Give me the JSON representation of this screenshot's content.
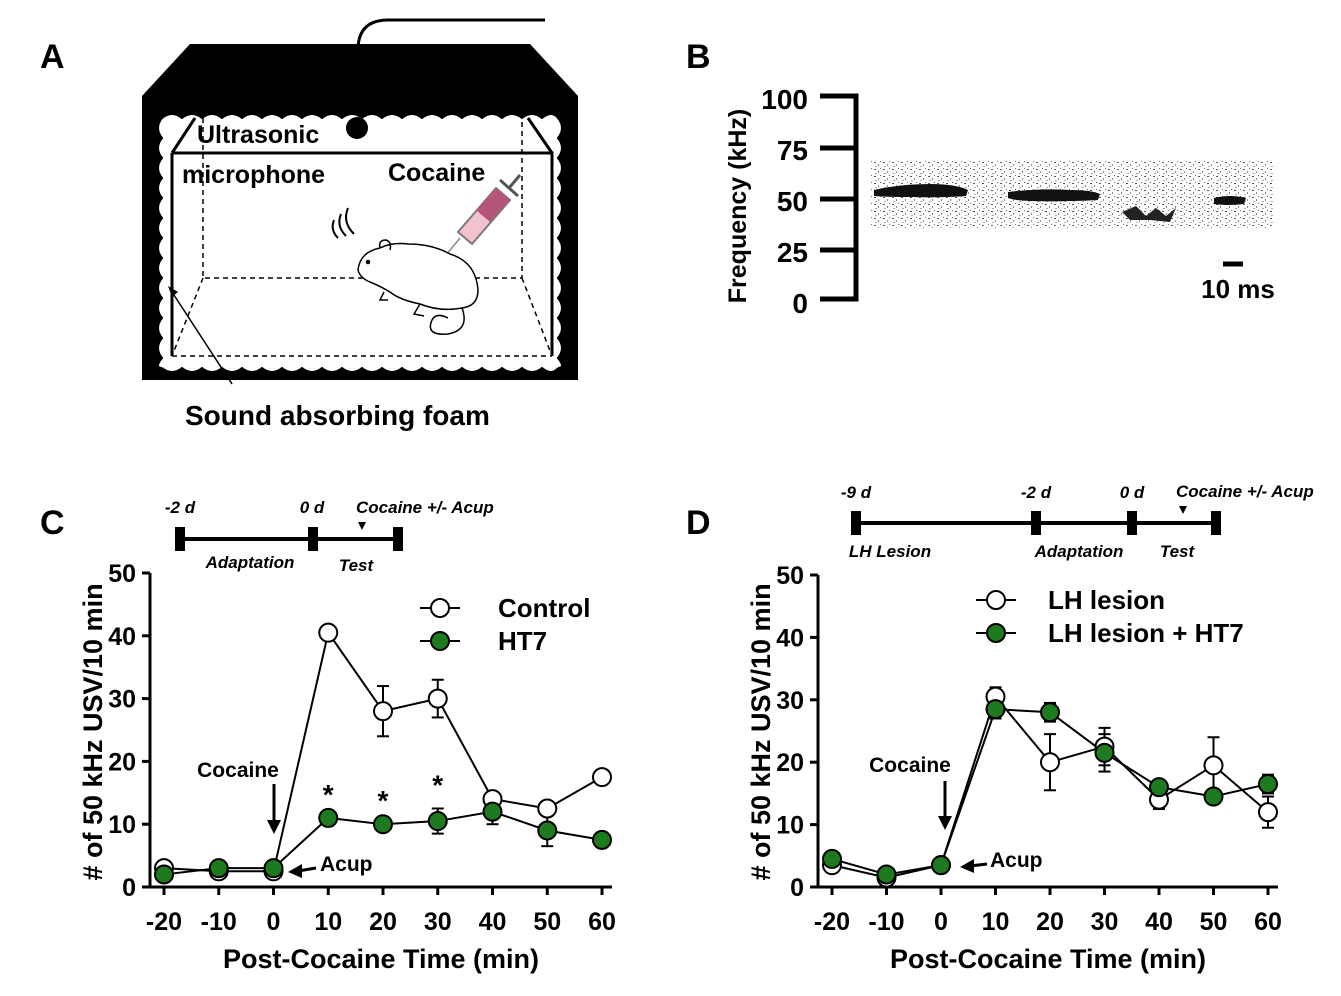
{
  "panels": {
    "a": {
      "letter": "A",
      "label_mic1": "Ultrasonic",
      "label_mic2": "microphone",
      "label_cocaine": "Cocaine",
      "label_foam": "Sound absorbing foam"
    },
    "b": {
      "letter": "B",
      "ylabel": "Frequency (kHz)",
      "yticks": [
        "100",
        "75",
        "50",
        "25",
        "0"
      ],
      "scale_label": "10 ms"
    },
    "c": {
      "letter": "C",
      "timeline": {
        "d1": "-2 d",
        "d2": "0 d",
        "event": "Cocaine +/- Acup",
        "seg1": "Adaptation",
        "seg2": "Test"
      },
      "ann_cocaine": "Cocaine",
      "ann_acup": "Acup",
      "star": "*"
    },
    "d": {
      "letter": "D",
      "timeline": {
        "d0": "-9 d",
        "d1": "-2 d",
        "d2": "0 d",
        "event": "Cocaine +/-  Acup",
        "seg0": "LH Lesion",
        "seg1": "Adaptation",
        "seg2": "Test"
      },
      "ann_cocaine": "Cocaine",
      "ann_acup": "Acup"
    }
  },
  "colors": {
    "green": "#1e7a1e",
    "black": "#000000",
    "white": "#ffffff"
  },
  "chart_data": [
    {
      "id": "C",
      "type": "line",
      "xlabel": "Post-Cocaine Time (min)",
      "ylabel": "# of 50 kHz USV/10 min",
      "x": [
        -20,
        -10,
        0,
        10,
        20,
        30,
        40,
        50,
        60
      ],
      "xticks": [
        "-20",
        "-10",
        "0",
        "10",
        "20",
        "30",
        "40",
        "50",
        "60"
      ],
      "ylim": [
        0,
        50
      ],
      "yticks": [
        "0",
        "10",
        "20",
        "30",
        "40",
        "50"
      ],
      "legend_position": "top-right",
      "series": [
        {
          "name": "Control",
          "marker": "open",
          "values": [
            3,
            2.5,
            2.5,
            40.5,
            28,
            30,
            14,
            12.5,
            17.5
          ],
          "err": [
            0,
            0,
            0,
            0,
            4,
            3,
            0,
            0,
            0
          ]
        },
        {
          "name": "HT7",
          "marker": "green",
          "values": [
            2,
            3,
            3,
            11,
            10,
            10.5,
            12,
            9,
            7.5
          ],
          "err": [
            0,
            0,
            0,
            0,
            0,
            2,
            2,
            2.5,
            0
          ]
        }
      ],
      "significance_x": [
        10,
        20,
        30
      ]
    },
    {
      "id": "D",
      "type": "line",
      "xlabel": "Post-Cocaine Time (min)",
      "ylabel": "# of 50 kHz USV/10 min",
      "x": [
        -20,
        -10,
        0,
        10,
        20,
        30,
        40,
        50,
        60
      ],
      "xticks": [
        "-20",
        "-10",
        "0",
        "10",
        "20",
        "30",
        "40",
        "50",
        "60"
      ],
      "ylim": [
        0,
        50
      ],
      "yticks": [
        "0",
        "10",
        "20",
        "30",
        "40",
        "50"
      ],
      "legend_position": "top-right",
      "series": [
        {
          "name": "LH lesion",
          "marker": "open",
          "values": [
            3.5,
            1.5,
            3.5,
            30.5,
            20,
            22.5,
            14,
            19.5,
            12
          ],
          "err": [
            0,
            0,
            0,
            1.5,
            4.5,
            3,
            1.5,
            4.5,
            2.5
          ]
        },
        {
          "name": "LH lesion + HT7",
          "marker": "green",
          "values": [
            4.5,
            2,
            3.5,
            28.5,
            28,
            21.5,
            16,
            14.5,
            16.5
          ],
          "err": [
            0,
            0,
            0,
            1.5,
            1.5,
            3,
            0,
            0,
            1.5
          ]
        }
      ]
    }
  ]
}
